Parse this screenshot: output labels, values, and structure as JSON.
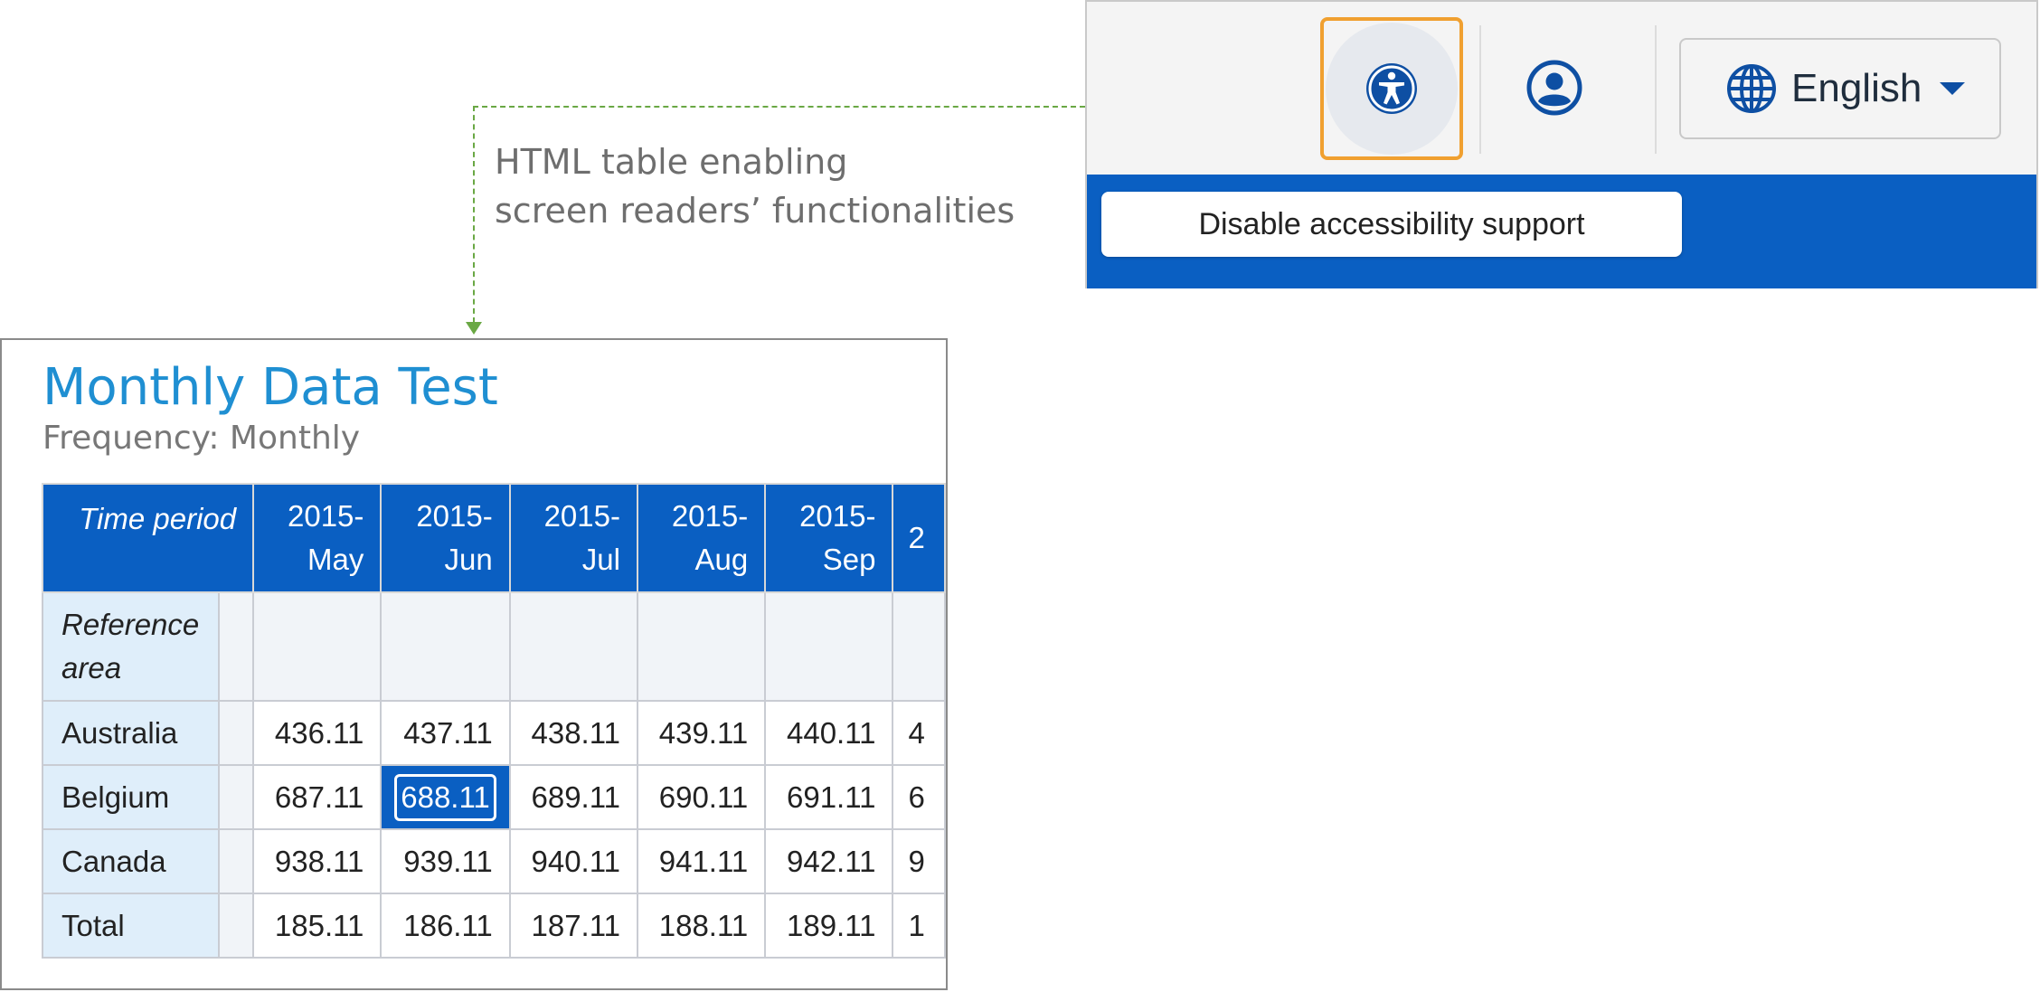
{
  "header": {
    "accessibility_icon": "accessibility-icon",
    "user_icon": "user-account-icon",
    "language": {
      "icon": "globe-icon",
      "label": "English",
      "caret_icon": "caret-down-icon"
    },
    "tooltip": "Disable accessibility support",
    "colors": {
      "bar": "#0a5fc2",
      "focus_outline": "#f0a030"
    }
  },
  "annotation": {
    "lines": [
      "HTML table enabling",
      "screen readers’ functionalities"
    ],
    "color": "#6aa844"
  },
  "table": {
    "title": "Monthly Data Test",
    "subtitle": "Frequency: Monthly",
    "time_header": "Time period",
    "columns": [
      {
        "year": "2015-",
        "month": "May"
      },
      {
        "year": "2015-",
        "month": "Jun"
      },
      {
        "year": "2015-",
        "month": "Jul"
      },
      {
        "year": "2015-",
        "month": "Aug"
      },
      {
        "year": "2015-",
        "month": "Sep"
      },
      {
        "year": "2",
        "month": ""
      }
    ],
    "reference_area_label": [
      "Reference",
      "area"
    ],
    "rows": [
      {
        "label": "Australia",
        "values": [
          "436.11",
          "437.11",
          "438.11",
          "439.11",
          "440.11",
          "4"
        ]
      },
      {
        "label": "Belgium",
        "values": [
          "687.11",
          "688.11",
          "689.11",
          "690.11",
          "691.11",
          "6"
        ]
      },
      {
        "label": "Canada",
        "values": [
          "938.11",
          "939.11",
          "940.11",
          "941.11",
          "942.11",
          "9"
        ]
      },
      {
        "label": "Total",
        "values": [
          "185.11",
          "186.11",
          "187.11",
          "188.11",
          "189.11",
          "1"
        ]
      }
    ],
    "selected_cell": {
      "row": "Belgium",
      "column": "2015-Jun",
      "value": "688.11"
    },
    "colors": {
      "header": "#0a5fc2",
      "row_label_bg": "#dfeefa",
      "title": "#1f8fd2"
    }
  }
}
